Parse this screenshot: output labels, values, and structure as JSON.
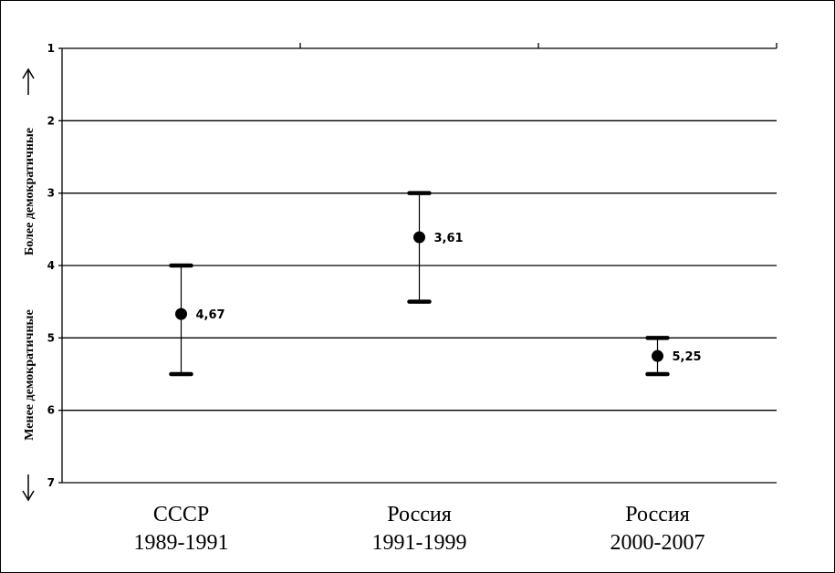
{
  "chart_data": {
    "type": "scatter",
    "title": "",
    "y_axis": {
      "reversed": true,
      "ylim": [
        1,
        7
      ],
      "ticks": [
        "1",
        "2",
        "3",
        "4",
        "5",
        "6",
        "7"
      ],
      "label_top": "Более демократичные",
      "label_bottom": "Менее демократичные"
    },
    "grid": true,
    "categories": [
      {
        "line1": "СССР",
        "line2": "1989-1991"
      },
      {
        "line1": "Россия",
        "line2": "1991-1999"
      },
      {
        "line1": "Россия",
        "line2": "2000-2007"
      }
    ],
    "series": [
      {
        "points": [
          {
            "mean": 4.67,
            "label": "4,67",
            "low": 4.0,
            "high": 5.5
          },
          {
            "mean": 3.61,
            "label": "3,61",
            "low": 3.0,
            "high": 4.5
          },
          {
            "mean": 5.25,
            "label": "5,25",
            "low": 5.0,
            "high": 5.5
          }
        ]
      }
    ]
  }
}
